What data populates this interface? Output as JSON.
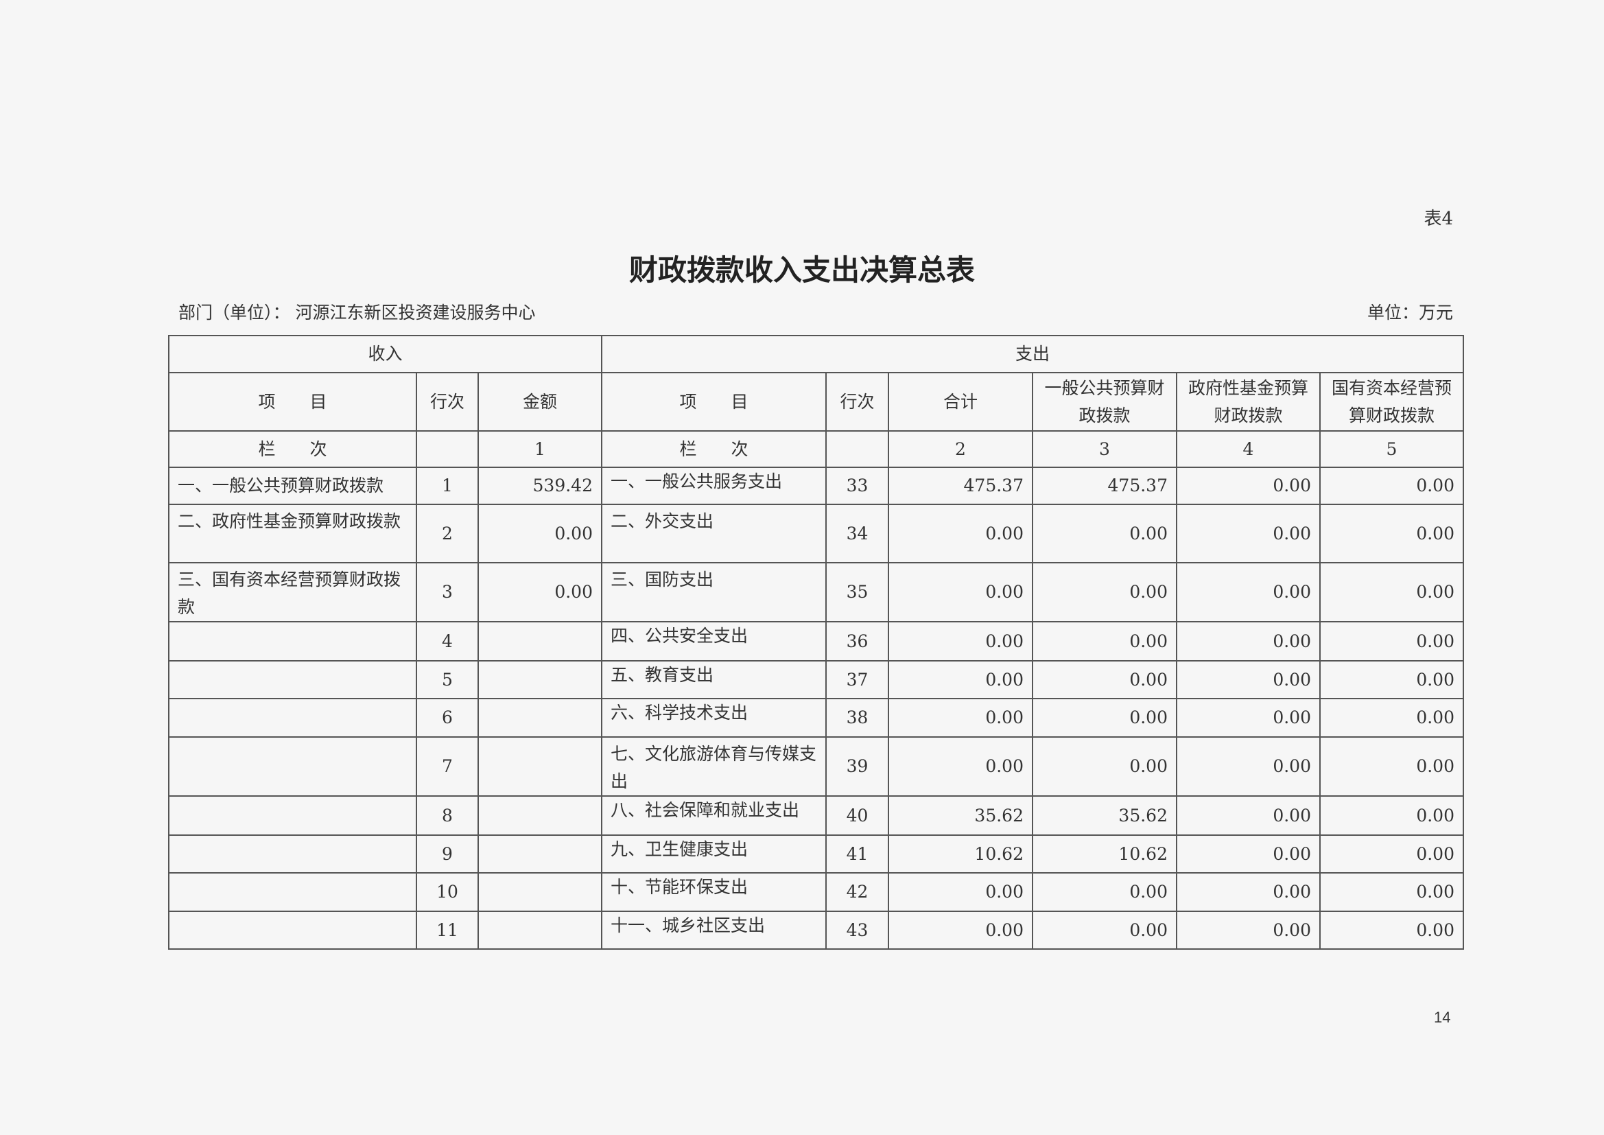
{
  "table_no": "表4",
  "title": "财政拨款收入支出决算总表",
  "department": "部门（单位）：  河源江东新区投资建设服务中心",
  "unit": "单位：万元",
  "page_number": "14",
  "header": {
    "income": "收入",
    "expense": "支出",
    "item": "项　　目",
    "row_no": "行次",
    "amount": "金额",
    "total": "合计",
    "general_budget": "一般公共预算财政拨款",
    "gov_fund": "政府性基金预算财政拨款",
    "state_capital": "国有资本经营预算财政拨款",
    "column_label": "栏　　次",
    "col1": "1",
    "col2": "2",
    "col3": "3",
    "col4": "4",
    "col5": "5"
  },
  "rows": [
    {
      "in_item": "一、一般公共预算财政拨款",
      "in_no": "1",
      "in_amt": "539.42",
      "ex_item": "一、一般公共服务支出",
      "ex_no": "33",
      "total": "475.37",
      "general": "475.37",
      "fund": "0.00",
      "capital": "0.00"
    },
    {
      "in_item": "二、政府性基金预算财政拨款",
      "in_no": "2",
      "in_amt": "0.00",
      "ex_item": "二、外交支出",
      "ex_no": "34",
      "total": "0.00",
      "general": "0.00",
      "fund": "0.00",
      "capital": "0.00"
    },
    {
      "in_item": "三、国有资本经营预算财政拨款",
      "in_no": "3",
      "in_amt": "0.00",
      "ex_item": "三、国防支出",
      "ex_no": "35",
      "total": "0.00",
      "general": "0.00",
      "fund": "0.00",
      "capital": "0.00"
    },
    {
      "in_item": "",
      "in_no": "4",
      "in_amt": "",
      "ex_item": "四、公共安全支出",
      "ex_no": "36",
      "total": "0.00",
      "general": "0.00",
      "fund": "0.00",
      "capital": "0.00"
    },
    {
      "in_item": "",
      "in_no": "5",
      "in_amt": "",
      "ex_item": "五、教育支出",
      "ex_no": "37",
      "total": "0.00",
      "general": "0.00",
      "fund": "0.00",
      "capital": "0.00"
    },
    {
      "in_item": "",
      "in_no": "6",
      "in_amt": "",
      "ex_item": "六、科学技术支出",
      "ex_no": "38",
      "total": "0.00",
      "general": "0.00",
      "fund": "0.00",
      "capital": "0.00"
    },
    {
      "in_item": "",
      "in_no": "7",
      "in_amt": "",
      "ex_item": "七、文化旅游体育与传媒支出",
      "ex_no": "39",
      "total": "0.00",
      "general": "0.00",
      "fund": "0.00",
      "capital": "0.00"
    },
    {
      "in_item": "",
      "in_no": "8",
      "in_amt": "",
      "ex_item": "八、社会保障和就业支出",
      "ex_no": "40",
      "total": "35.62",
      "general": "35.62",
      "fund": "0.00",
      "capital": "0.00"
    },
    {
      "in_item": "",
      "in_no": "9",
      "in_amt": "",
      "ex_item": "九、卫生健康支出",
      "ex_no": "41",
      "total": "10.62",
      "general": "10.62",
      "fund": "0.00",
      "capital": "0.00"
    },
    {
      "in_item": "",
      "in_no": "10",
      "in_amt": "",
      "ex_item": "十、节能环保支出",
      "ex_no": "42",
      "total": "0.00",
      "general": "0.00",
      "fund": "0.00",
      "capital": "0.00"
    },
    {
      "in_item": "",
      "in_no": "11",
      "in_amt": "",
      "ex_item": "十一、城乡社区支出",
      "ex_no": "43",
      "total": "0.00",
      "general": "0.00",
      "fund": "0.00",
      "capital": "0.00"
    }
  ]
}
